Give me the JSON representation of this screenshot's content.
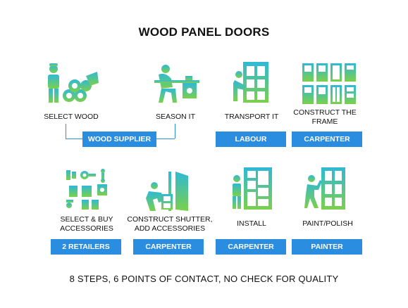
{
  "title": "WOOD PANEL DOORS",
  "colors": {
    "accent": "#2b8de0",
    "icon_top": "#2fb9d6",
    "icon_bottom": "#7bd04a"
  },
  "steps": [
    {
      "label": "SELECT WOOD",
      "icon": "logs-worker-icon"
    },
    {
      "label": "SEASON IT",
      "icon": "worker-at-bench-icon"
    },
    {
      "label": "TRANSPORT IT",
      "icon": "carry-door-icon"
    },
    {
      "label": "CONSTRUCT THE FRAME",
      "icon": "door-frames-icon"
    },
    {
      "label": "SELECT & BUY ACCESSORIES",
      "icon": "door-hardware-icon"
    },
    {
      "label": "CONSTRUCT SHUTTER, ADD ACCESSORIES",
      "icon": "assemble-door-icon"
    },
    {
      "label": "INSTALL",
      "icon": "install-door-icon"
    },
    {
      "label": "PAINT/POLISH",
      "icon": "paint-door-icon"
    }
  ],
  "tags": {
    "wood_supplier": "WOOD SUPPLIER",
    "labour": "LABOUR",
    "carpenter_1": "CARPENTER",
    "retailers": "2 RETAILERS",
    "carpenter_2": "CARPENTER",
    "carpenter_3": "CARPENTER",
    "painter": "PAINTER"
  },
  "footer": "8 STEPS, 6 POINTS OF CONTACT, NO CHECK FOR QUALITY"
}
